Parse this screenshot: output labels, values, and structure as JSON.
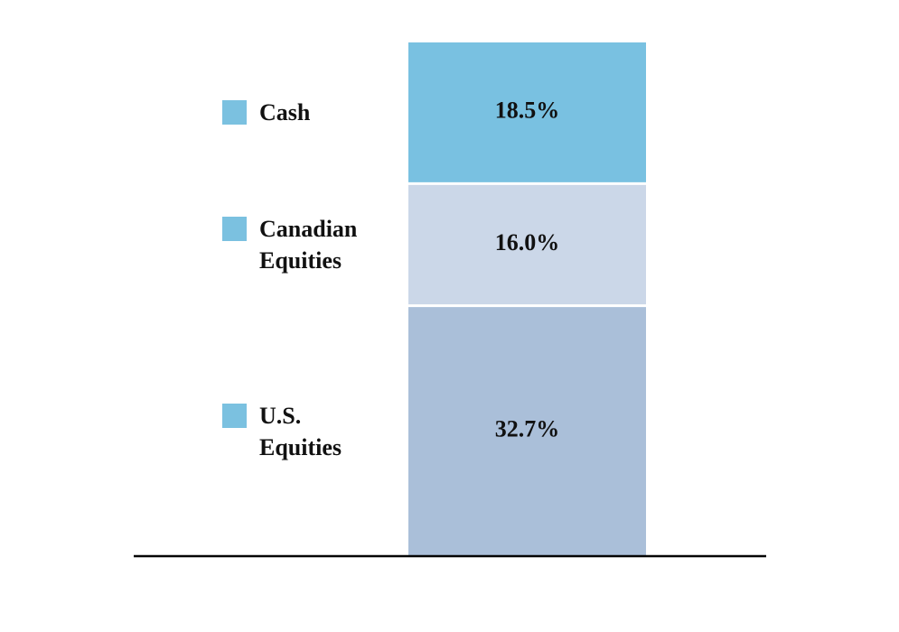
{
  "chart_data": {
    "type": "stacked_bar",
    "series": [
      {
        "name": "U.S. Equities",
        "color": "#aabfd9",
        "values": [
          32.7
        ],
        "value_labels": [
          "32.7%"
        ]
      },
      {
        "name": "Canadian Equities",
        "color": "#cbd7e8",
        "values": [
          16.0
        ],
        "value_labels": [
          "16.0%"
        ]
      },
      {
        "name": "Cash",
        "color": "#79c1e1",
        "values": [
          18.5
        ],
        "value_labels": [
          "18.5%"
        ]
      }
    ],
    "legend_color": "#7bc1e0"
  }
}
